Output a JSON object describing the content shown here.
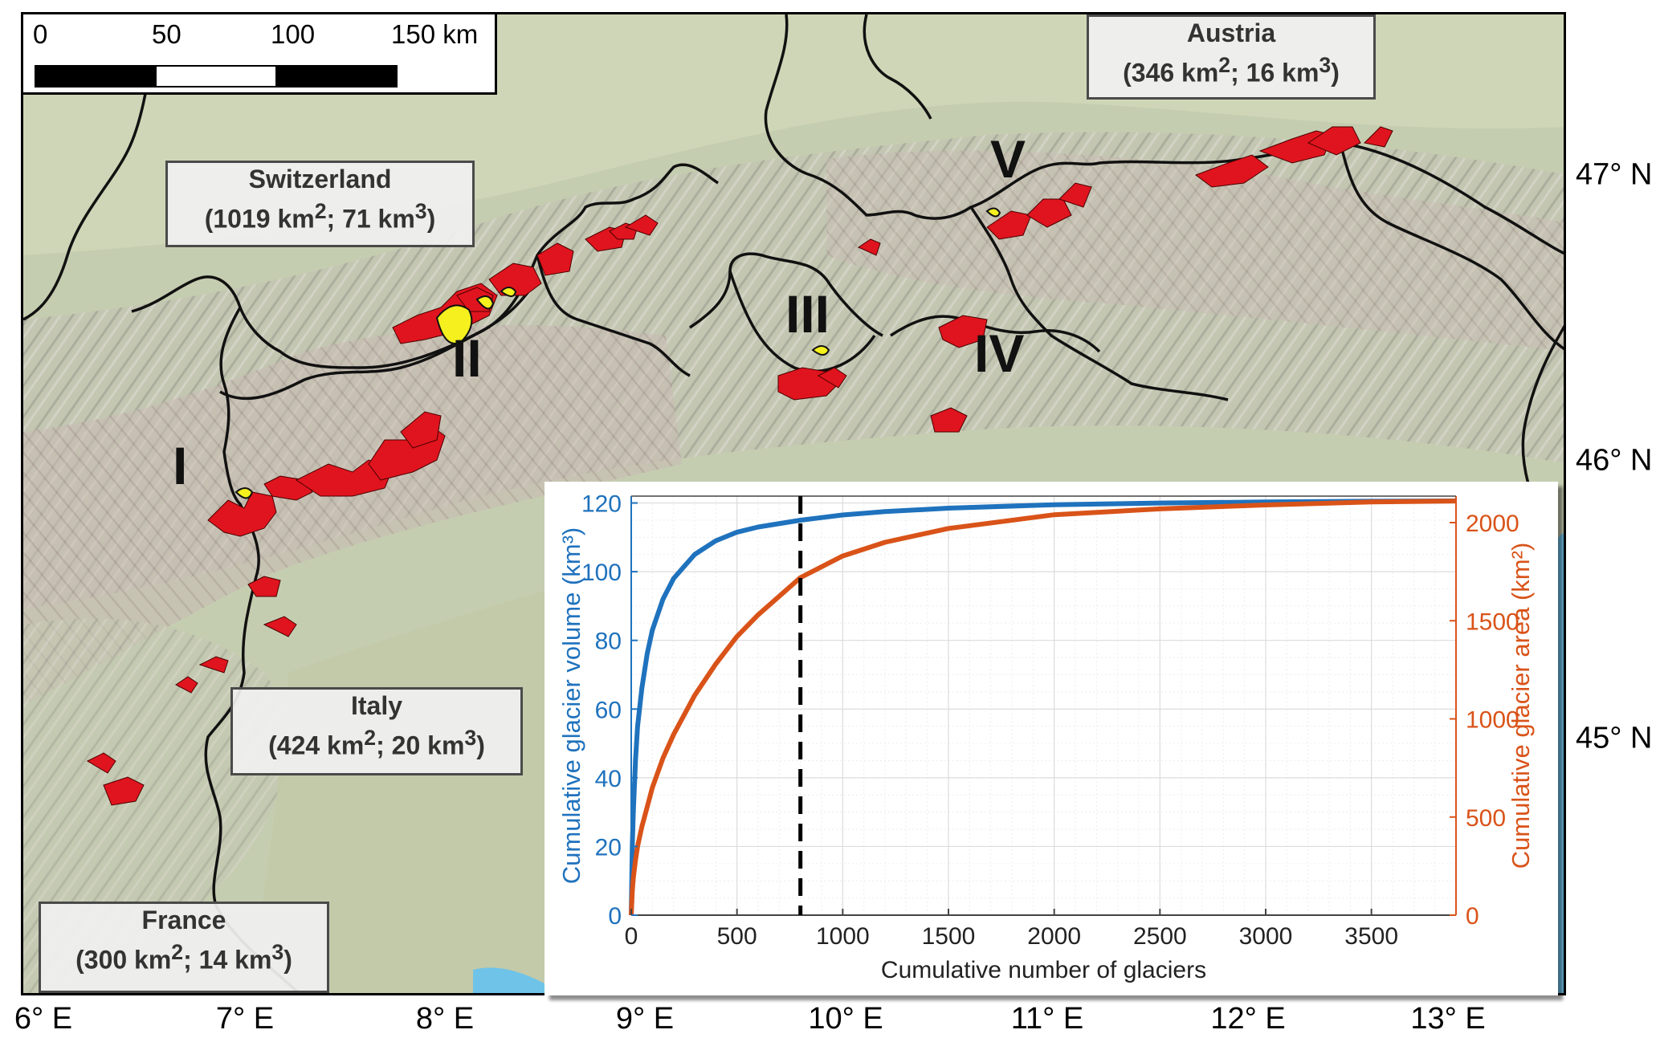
{
  "scale_bar": {
    "ticks": [
      "0",
      "50",
      "100",
      "150 km"
    ]
  },
  "countries": [
    {
      "id": "austria",
      "name": "Austria",
      "area": "346",
      "volume": "16"
    },
    {
      "id": "switzerland",
      "name": "Switzerland",
      "area": "1019",
      "volume": "71"
    },
    {
      "id": "italy",
      "name": "Italy",
      "area": "424",
      "volume": "20"
    },
    {
      "id": "france",
      "name": "France",
      "area": "300",
      "volume": "14"
    }
  ],
  "regions": [
    "I",
    "II",
    "III",
    "IV",
    "V"
  ],
  "lon_labels": [
    "6° E",
    "7° E",
    "8° E",
    "9° E",
    "10° E",
    "11° E",
    "12° E",
    "13° E"
  ],
  "lat_labels": [
    "47° N",
    "46° N",
    "45° N"
  ],
  "colors": {
    "glacier": "#e0141e",
    "highlight": "#f5f01e",
    "volume_series": "#1f72bd",
    "area_series": "#d95319",
    "border": "#111111"
  },
  "chart_data": {
    "type": "line",
    "xlabel": "Cumulative number of glaciers",
    "ylabel_left": "Cumulative glacier volume (km³)",
    "ylabel_right": "Cumulative glacier area (km²)",
    "xlim": [
      0,
      3900
    ],
    "ylim_left": [
      0,
      122
    ],
    "ylim_right": [
      0,
      2135
    ],
    "xticks": [
      0,
      500,
      1000,
      1500,
      2000,
      2500,
      3000,
      3500
    ],
    "yticks_left": [
      0,
      20,
      40,
      60,
      80,
      100,
      120
    ],
    "yticks_right": [
      0,
      500,
      1000,
      1500,
      2000
    ],
    "grid": true,
    "vertical_marker_x": 800,
    "series": [
      {
        "axis": "left",
        "x": [
          0,
          5,
          10,
          20,
          30,
          50,
          75,
          100,
          150,
          200,
          300,
          400,
          500,
          600,
          800,
          1000,
          1200,
          1500,
          2000,
          2500,
          3000,
          3500,
          3900
        ],
        "values": [
          0,
          20,
          30,
          45,
          55,
          66,
          76,
          83,
          92,
          98,
          105,
          109,
          111.5,
          113,
          115,
          116.5,
          117.5,
          118.5,
          119.5,
          120,
          120.3,
          120.5,
          120.6
        ]
      },
      {
        "axis": "right",
        "x": [
          0,
          5,
          10,
          20,
          30,
          50,
          75,
          100,
          150,
          200,
          300,
          400,
          500,
          600,
          800,
          1000,
          1200,
          1500,
          2000,
          2500,
          3000,
          3500,
          3900
        ],
        "values": [
          0,
          120,
          190,
          280,
          350,
          450,
          550,
          650,
          800,
          920,
          1120,
          1280,
          1420,
          1530,
          1720,
          1830,
          1900,
          1970,
          2040,
          2070,
          2090,
          2105,
          2110
        ]
      }
    ]
  }
}
